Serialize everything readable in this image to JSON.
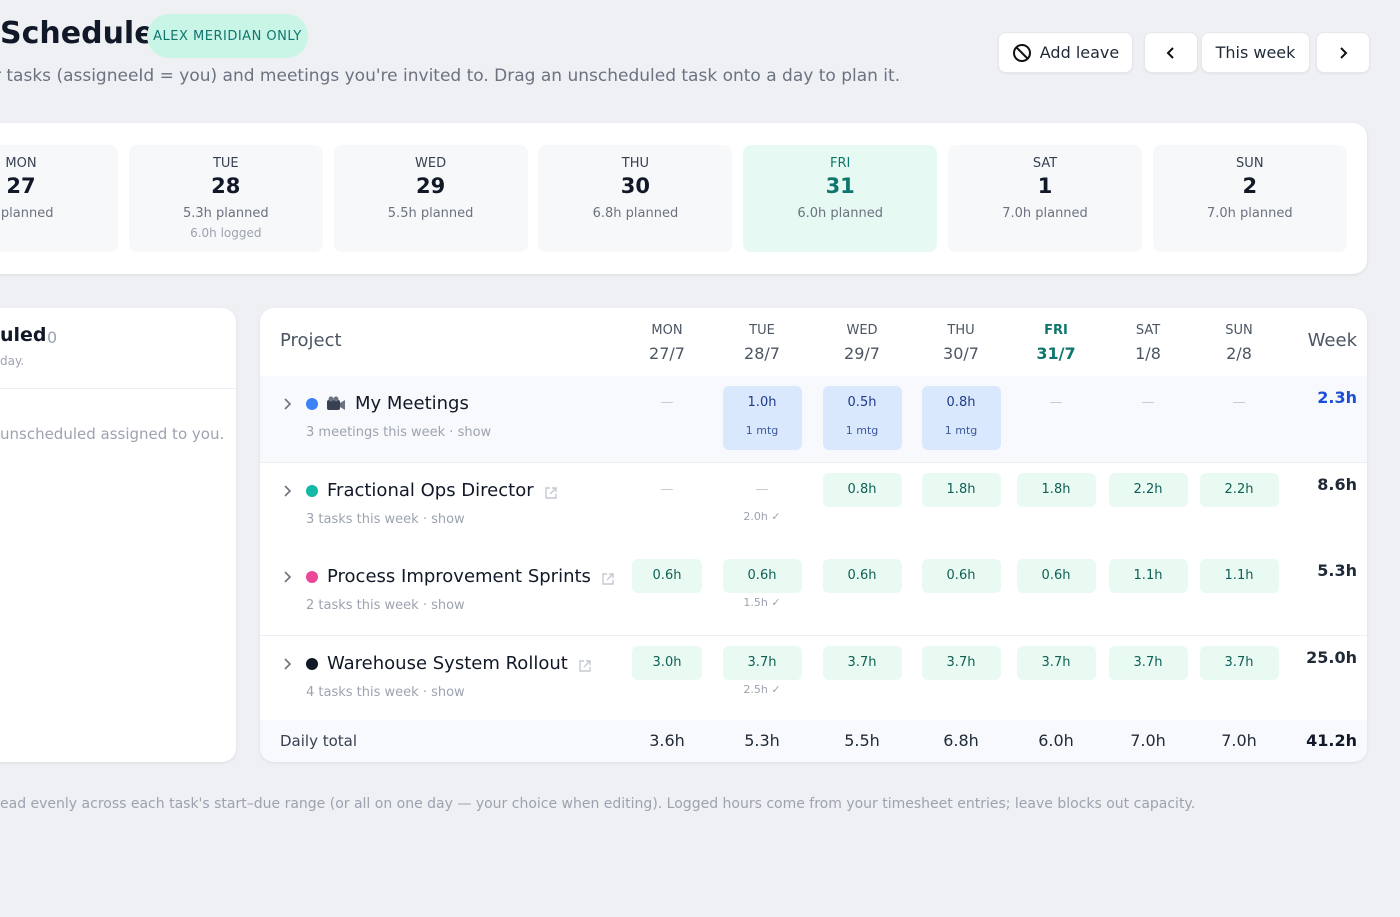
{
  "header": {
    "title": "Schedule",
    "badge": "ALEX MERIDIAN ONLY",
    "subtitle": "r tasks (assigneeId = you) and meetings you're invited to. Drag an unscheduled task onto a day to plan it.",
    "actions": {
      "add_leave": "Add leave",
      "this_week": "This week"
    }
  },
  "days": [
    {
      "dow": "MON",
      "date": "27",
      "planned": "h planned"
    },
    {
      "dow": "TUE",
      "date": "28",
      "planned": "5.3h planned",
      "logged": "6.0h logged"
    },
    {
      "dow": "WED",
      "date": "29",
      "planned": "5.5h planned"
    },
    {
      "dow": "THU",
      "date": "30",
      "planned": "6.8h planned"
    },
    {
      "dow": "FRI",
      "date": "31",
      "planned": "6.0h planned"
    },
    {
      "dow": "SAT",
      "date": "1",
      "planned": "7.0h planned"
    },
    {
      "dow": "SUN",
      "date": "2",
      "planned": "7.0h planned"
    }
  ],
  "unscheduled": {
    "title": "uled",
    "count": "0",
    "hint": "day.",
    "empty": "unscheduled assigned to you."
  },
  "table": {
    "project_header": "Project",
    "week_header": "Week",
    "columns": [
      {
        "dow": "MON",
        "date": "27/7"
      },
      {
        "dow": "TUE",
        "date": "28/7"
      },
      {
        "dow": "WED",
        "date": "29/7"
      },
      {
        "dow": "THU",
        "date": "30/7"
      },
      {
        "dow": "FRI",
        "date": "31/7"
      },
      {
        "dow": "SAT",
        "date": "1/8"
      },
      {
        "dow": "SUN",
        "date": "2/8"
      }
    ],
    "rows": [
      {
        "name": "My Meetings",
        "sub": "3 meetings this week · show",
        "color": "#3b82f6",
        "week": "2.3h",
        "cells": [
          {
            "value": "—"
          },
          {
            "value": "1.0h",
            "sub": "1 mtg"
          },
          {
            "value": "0.5h",
            "sub": "1 mtg"
          },
          {
            "value": "0.8h",
            "sub": "1 mtg"
          },
          {
            "value": "—"
          },
          {
            "value": "—"
          },
          {
            "value": "—"
          }
        ]
      },
      {
        "name": "Fractional Ops Director",
        "sub": "3 tasks this week · show",
        "color": "#14b8a6",
        "week": "8.6h",
        "cells": [
          {
            "value": "—"
          },
          {
            "value": "—",
            "sub": "2.0h ✓"
          },
          {
            "value": "0.8h"
          },
          {
            "value": "1.8h"
          },
          {
            "value": "1.8h"
          },
          {
            "value": "2.2h"
          },
          {
            "value": "2.2h"
          }
        ]
      },
      {
        "name": "Process Improvement Sprints",
        "sub": "2 tasks this week · show",
        "color": "#ec4899",
        "week": "5.3h",
        "cells": [
          {
            "value": "0.6h"
          },
          {
            "value": "0.6h",
            "sub": "1.5h ✓"
          },
          {
            "value": "0.6h"
          },
          {
            "value": "0.6h"
          },
          {
            "value": "0.6h"
          },
          {
            "value": "1.1h"
          },
          {
            "value": "1.1h"
          }
        ]
      },
      {
        "name": "Warehouse System Rollout",
        "sub": "4 tasks this week · show",
        "color": "#111827",
        "week": "25.0h",
        "cells": [
          {
            "value": "3.0h"
          },
          {
            "value": "3.7h",
            "sub": "2.5h ✓"
          },
          {
            "value": "3.7h"
          },
          {
            "value": "3.7h"
          },
          {
            "value": "3.7h"
          },
          {
            "value": "3.7h"
          },
          {
            "value": "3.7h"
          }
        ]
      }
    ],
    "footer": {
      "label": "Daily total",
      "totals": [
        "3.6h",
        "5.3h",
        "5.5h",
        "6.8h",
        "6.0h",
        "7.0h",
        "7.0h"
      ],
      "week": "41.2h"
    }
  },
  "note": "ead evenly across each task's start–due range (or all on one day — your choice when editing). Logged hours come from your timesheet entries; leave blocks out capacity."
}
